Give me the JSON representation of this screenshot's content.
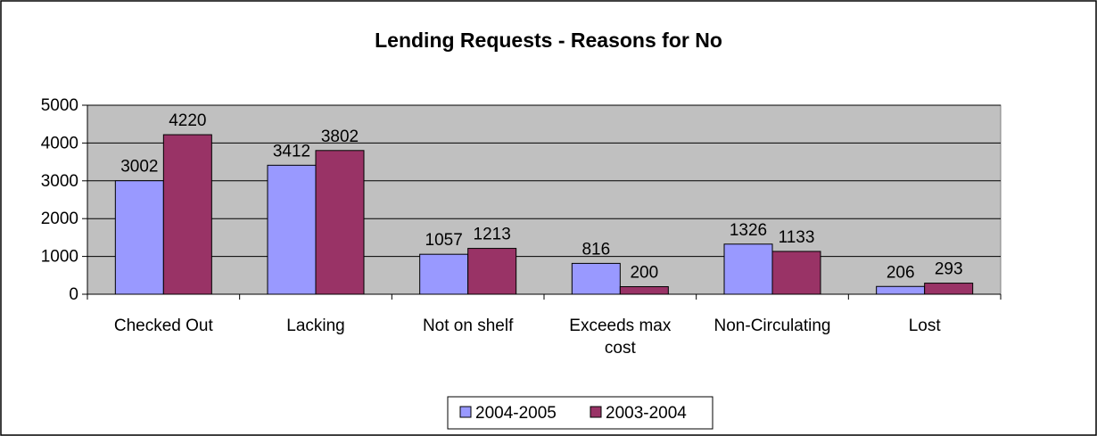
{
  "chart_data": {
    "type": "bar",
    "title": "Lending Requests - Reasons for No",
    "xlabel": "",
    "ylabel": "",
    "ylim": [
      0,
      5000
    ],
    "yticks": [
      0,
      1000,
      2000,
      3000,
      4000,
      5000
    ],
    "categories": [
      [
        "Checked Out"
      ],
      [
        "Lacking"
      ],
      [
        "Not on shelf"
      ],
      [
        "Exceeds max",
        "cost"
      ],
      [
        "Non-Circulating"
      ],
      [
        "Lost"
      ]
    ],
    "series": [
      {
        "name": "2004-2005",
        "color": "#9999FF",
        "values": [
          3002,
          3412,
          1057,
          816,
          1326,
          206
        ]
      },
      {
        "name": "2003-2004",
        "color": "#993366",
        "values": [
          4220,
          3802,
          1213,
          200,
          1133,
          293
        ]
      }
    ],
    "grid": true,
    "legend": "bottom",
    "plot_background": "#C0C0C0"
  }
}
